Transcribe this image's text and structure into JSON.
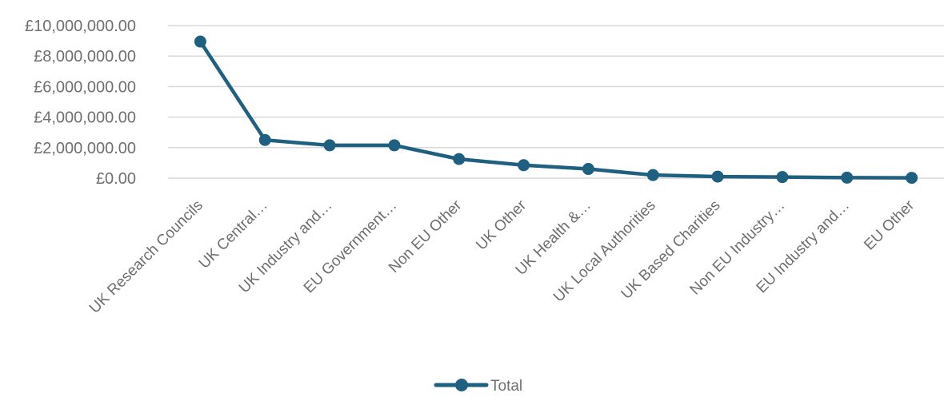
{
  "chart_data": {
    "type": "line",
    "title": "",
    "xlabel": "",
    "ylabel": "",
    "ylim": [
      0,
      10000000
    ],
    "y_ticks": [
      0,
      2000000,
      4000000,
      6000000,
      8000000,
      10000000
    ],
    "y_tick_labels": [
      "£0.00",
      "£2,000,000.00",
      "£4,000,000.00",
      "£6,000,000.00",
      "£8,000,000.00",
      "£10,000,000.00"
    ],
    "grid": true,
    "legend_position": "bottom",
    "categories": [
      "UK Research Councils",
      "UK Central…",
      "UK Industry and…",
      "EU Government…",
      "Non EU Other",
      "UK Other",
      "UK Health &…",
      "UK Local Authorities",
      "UK Based Charities",
      "Non EU Industry…",
      "EU Industry and…",
      "EU Other"
    ],
    "series": [
      {
        "name": "Total",
        "color": "#1f5f80",
        "values": [
          8950000,
          2500000,
          2150000,
          2150000,
          1250000,
          850000,
          600000,
          200000,
          100000,
          70000,
          30000,
          20000
        ]
      }
    ]
  }
}
